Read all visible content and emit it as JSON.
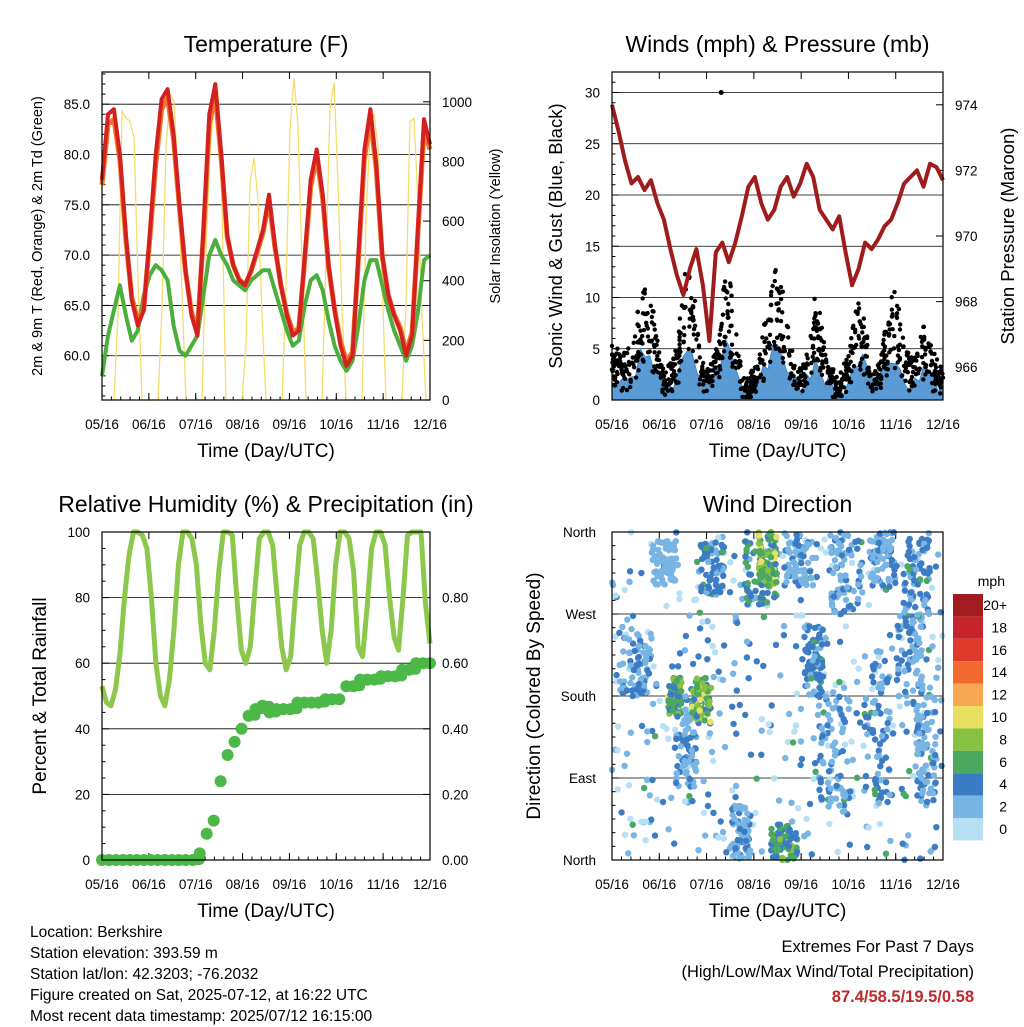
{
  "chart_data": [
    {
      "id": "temperature",
      "type": "line",
      "title": "Temperature (F)",
      "xlabel": "Time (Day/UTC)",
      "ylabel": "2m & 9m T (Red, Orange) & 2m Td (Green)",
      "y2label": "Solar Insolation (Yellow)",
      "x_ticks": [
        "05/16",
        "06/16",
        "07/16",
        "08/16",
        "09/16",
        "10/16",
        "11/16",
        "12/16"
      ],
      "ylim": [
        55.6,
        88.2
      ],
      "y_ticks": [
        "60.0",
        "65.0",
        "70.0",
        "75.0",
        "80.0",
        "85.0"
      ],
      "y2lim": [
        0,
        1100
      ],
      "y2_ticks": [
        "0",
        "200",
        "400",
        "600",
        "800",
        "1000"
      ],
      "series": [
        {
          "color": "#d42020",
          "values": [
            77.5,
            84.0,
            84.5,
            80.0,
            72.0,
            65.5,
            63.0,
            64.5,
            72.0,
            80.0,
            85.5,
            86.5,
            82.0,
            75.0,
            68.5,
            64.0,
            62.0,
            72.5,
            84.0,
            87.0,
            80.0,
            72.0,
            69.0,
            67.5,
            67.0,
            68.5,
            70.5,
            72.5,
            76.0,
            71.0,
            67.0,
            64.0,
            62.0,
            62.5,
            70.0,
            77.5,
            80.5,
            76.0,
            69.0,
            64.5,
            61.0,
            59.0,
            60.0,
            70.0,
            80.5,
            84.5,
            79.0,
            70.0,
            66.0,
            64.0,
            62.5,
            60.0,
            62.0,
            73.0,
            83.5,
            81.0
          ]
        },
        {
          "color": "#f07828",
          "values": [
            77.0,
            83.0,
            83.5,
            79.5,
            71.5,
            65.8,
            63.5,
            64.6,
            71.5,
            79.0,
            84.5,
            85.6,
            81.5,
            74.6,
            68.4,
            64.3,
            62.5,
            72.0,
            83.0,
            86.0,
            79.5,
            71.8,
            69.0,
            67.6,
            67.0,
            68.4,
            70.3,
            72.2,
            75.5,
            70.8,
            67.0,
            64.2,
            62.4,
            62.7,
            69.6,
            76.8,
            79.8,
            75.6,
            68.8,
            64.6,
            61.4,
            59.5,
            60.3,
            69.6,
            79.6,
            83.6,
            78.5,
            69.8,
            66.0,
            64.1,
            62.8,
            60.4,
            62.3,
            72.5,
            82.5,
            80.5
          ]
        },
        {
          "color": "#4cae3c",
          "values": [
            58.0,
            62.0,
            64.5,
            67.0,
            64.0,
            61.5,
            62.5,
            66.0,
            68.0,
            69.0,
            68.5,
            67.5,
            63.0,
            60.5,
            60.0,
            61.0,
            62.0,
            66.0,
            70.0,
            71.5,
            70.0,
            69.0,
            67.5,
            67.0,
            66.5,
            67.5,
            68.0,
            68.5,
            68.5,
            66.5,
            64.5,
            62.5,
            61.0,
            61.5,
            65.0,
            67.5,
            68.0,
            66.5,
            63.5,
            61.0,
            59.5,
            58.5,
            59.5,
            63.0,
            67.5,
            69.5,
            69.5,
            67.0,
            64.5,
            62.5,
            61.0,
            59.5,
            61.0,
            64.5,
            69.5,
            70.0
          ]
        }
      ],
      "insolation": [
        0,
        0,
        0,
        0,
        420,
        860,
        1000,
        1010,
        820,
        400,
        0,
        0,
        0,
        0,
        0,
        350,
        780,
        960,
        990,
        700,
        320,
        0,
        0,
        0,
        0,
        0,
        420,
        900,
        1020,
        980,
        600,
        0,
        0,
        0,
        0,
        0,
        300,
        680,
        820,
        560,
        200,
        0,
        0,
        0,
        0,
        0,
        480,
        900,
        1000,
        870,
        420,
        0,
        0,
        0,
        0,
        0,
        450,
        870,
        960,
        760,
        350,
        0,
        0,
        0,
        0,
        0,
        520,
        940,
        1050,
        900,
        430,
        0,
        0,
        0,
        0,
        0,
        380,
        820,
        930,
        600,
        180,
        0,
        0
      ]
    },
    {
      "id": "winds",
      "type": "scatter",
      "title": "Winds (mph) & Pressure (mb)",
      "xlabel": "Time (Day/UTC)",
      "ylabel": "Sonic Wind & Gust (Blue, Black)",
      "y2label": "Station Pressure (Maroon)",
      "x_ticks": [
        "05/16",
        "06/16",
        "07/16",
        "08/16",
        "09/16",
        "10/16",
        "11/16",
        "12/16"
      ],
      "ylim": [
        0,
        32
      ],
      "y_ticks": [
        "0",
        "5",
        "10",
        "15",
        "20",
        "25",
        "30"
      ],
      "y2lim": [
        965.0,
        975.0
      ],
      "y2_ticks": [
        "966",
        "968",
        "970",
        "972",
        "974"
      ],
      "pressure": [
        974.0,
        973.2,
        972.3,
        971.6,
        971.8,
        971.4,
        971.7,
        971.0,
        970.5,
        969.6,
        968.8,
        968.2,
        969.0,
        969.6,
        968.5,
        966.8,
        969.5,
        969.8,
        969.2,
        969.8,
        970.6,
        971.5,
        971.8,
        971.0,
        970.5,
        970.8,
        971.5,
        971.8,
        971.2,
        971.6,
        972.2,
        971.8,
        970.8,
        970.5,
        970.2,
        970.6,
        969.5,
        968.5,
        969.0,
        969.8,
        969.6,
        969.9,
        970.3,
        970.5,
        971.0,
        971.6,
        971.8,
        972.0,
        971.5,
        972.2,
        972.1,
        971.7
      ],
      "wind_envelope": [
        4,
        3,
        3,
        3,
        4,
        5,
        7,
        9,
        8,
        5,
        3,
        2,
        2,
        3,
        5,
        8,
        9,
        8,
        5,
        3,
        2,
        3,
        4,
        6,
        9,
        8,
        5,
        3,
        1,
        1,
        2,
        3,
        5,
        6,
        9,
        10,
        8,
        5,
        3,
        2,
        2,
        3,
        5,
        7,
        6,
        4,
        2,
        2,
        1,
        2,
        3,
        5,
        7,
        6,
        4,
        2,
        2,
        3,
        5,
        7,
        8,
        6,
        4,
        3,
        3,
        4,
        5,
        4,
        3,
        2,
        2
      ],
      "gust_peak": 30.0
    },
    {
      "id": "humidity",
      "type": "line",
      "title": "Relative Humidity (%) & Precipitation (in)",
      "xlabel": "Time (Day/UTC)",
      "ylabel": "Percent & Total Rainfall",
      "x_ticks": [
        "05/16",
        "06/16",
        "07/16",
        "08/16",
        "09/16",
        "10/16",
        "11/16",
        "12/16"
      ],
      "ylim": [
        0,
        100
      ],
      "y_ticks": [
        "0",
        "20",
        "40",
        "60",
        "80",
        "100"
      ],
      "y2lim": [
        0,
        1.0
      ],
      "y2_ticks": [
        "0.00",
        "0.20",
        "0.40",
        "0.60",
        "0.80"
      ],
      "series": [
        {
          "color": "#8cc84b",
          "values": [
            53,
            48,
            47,
            52,
            63,
            80,
            93,
            100,
            100,
            99,
            95,
            80,
            60,
            50,
            47,
            55,
            70,
            90,
            100,
            100,
            98,
            90,
            72,
            60,
            58,
            70,
            88,
            100,
            100,
            99,
            80,
            64,
            60,
            65,
            82,
            98,
            100,
            100,
            96,
            80,
            65,
            58,
            62,
            80,
            96,
            100,
            100,
            98,
            85,
            70,
            60,
            70,
            90,
            100,
            100,
            98,
            88,
            65,
            62,
            77,
            95,
            100,
            100,
            96,
            80,
            68,
            64,
            80,
            99,
            100,
            100,
            100,
            78,
            66
          ]
        }
      ],
      "precip": [
        0.0,
        0.0,
        0.0,
        0.0,
        0.0,
        0.0,
        0.0,
        0.0,
        0.0,
        0.0,
        0.0,
        0.0,
        0.0,
        0.0,
        0.02,
        0.08,
        0.12,
        0.24,
        0.32,
        0.36,
        0.4,
        0.44,
        0.46,
        0.47,
        0.45,
        0.46,
        0.46,
        0.46,
        0.48,
        0.48,
        0.48,
        0.48,
        0.49,
        0.49,
        0.49,
        0.53,
        0.53,
        0.55,
        0.55,
        0.55,
        0.56,
        0.56,
        0.56,
        0.58,
        0.58,
        0.6,
        0.6,
        0.6
      ],
      "precip_color": "#4cb848"
    },
    {
      "id": "wind_direction",
      "type": "scatter",
      "title": "Wind Direction",
      "xlabel": "Time (Day/UTC)",
      "ylabel": "Direction (Colored By Speed)",
      "x_ticks": [
        "05/16",
        "06/16",
        "07/16",
        "08/16",
        "09/16",
        "10/16",
        "11/16",
        "12/16"
      ],
      "y_ticks": [
        "North",
        "East",
        "South",
        "West",
        "North"
      ],
      "ylim": [
        0,
        360
      ],
      "colorbar": {
        "title": "mph",
        "labels": [
          "20+",
          "18",
          "16",
          "14",
          "12",
          "10",
          "8",
          "6",
          "4",
          "2",
          "0"
        ],
        "colors": [
          "#a01c20",
          "#c4242a",
          "#e03a2c",
          "#f26a30",
          "#f8a850",
          "#e8e060",
          "#88c040",
          "#4aa860",
          "#3c7cc4",
          "#78b4e4",
          "#b8e0f4"
        ]
      },
      "clusters": [
        [
          0.02,
          0.12,
          180,
          250,
          3
        ],
        [
          0.12,
          0.2,
          300,
          350,
          2
        ],
        [
          0.17,
          0.21,
          160,
          200,
          7
        ],
        [
          0.19,
          0.26,
          80,
          180,
          3
        ],
        [
          0.24,
          0.3,
          150,
          200,
          8
        ],
        [
          0.26,
          0.34,
          290,
          350,
          4
        ],
        [
          0.36,
          0.42,
          0,
          60,
          3
        ],
        [
          0.4,
          0.5,
          280,
          360,
          5
        ],
        [
          0.44,
          0.5,
          300,
          360,
          8
        ],
        [
          0.48,
          0.56,
          0,
          40,
          6
        ],
        [
          0.52,
          0.62,
          300,
          360,
          3
        ],
        [
          0.58,
          0.64,
          180,
          260,
          4
        ],
        [
          0.62,
          0.72,
          50,
          180,
          3
        ],
        [
          0.66,
          0.76,
          270,
          360,
          3
        ],
        [
          0.76,
          0.84,
          60,
          230,
          4
        ],
        [
          0.78,
          0.86,
          300,
          360,
          3
        ],
        [
          0.86,
          0.94,
          170,
          270,
          3
        ],
        [
          0.88,
          0.96,
          260,
          360,
          4
        ],
        [
          0.92,
          0.98,
          60,
          180,
          3
        ]
      ]
    }
  ],
  "footer": {
    "location": "Location: Berkshire",
    "elevation": "Station elevation: 393.59 m",
    "latlon": "Station lat/lon: 42.3203; -76.2032",
    "created": "Figure created on Sat, 2025-07-12, at 16:22 UTC",
    "recent": "Most recent data timestamp: 2025/07/12 16:15:00",
    "extremes_title": "Extremes For Past 7 Days",
    "extremes_sub": "(High/Low/Max Wind/Total Precipitation)",
    "extremes_values": "87.4/58.5/19.5/0.58"
  }
}
